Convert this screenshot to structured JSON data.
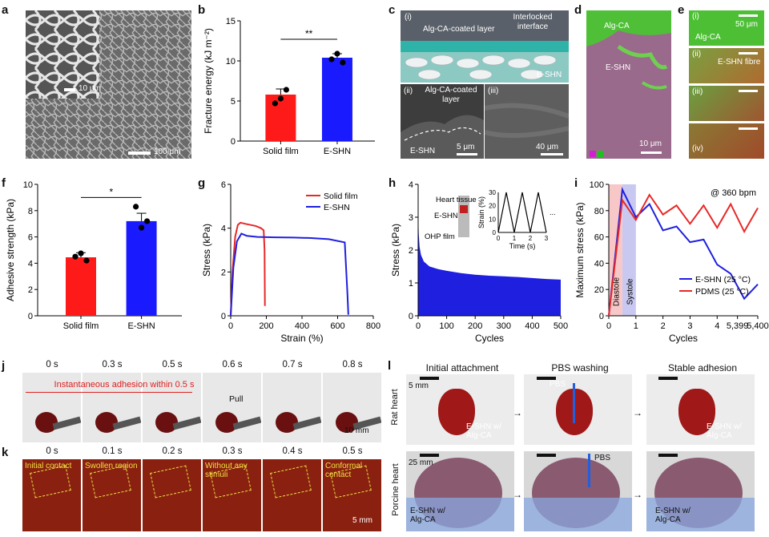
{
  "panels": {
    "a": {
      "letter": "a",
      "scale1": "10 μm",
      "scale2": "100 μm"
    },
    "b": {
      "letter": "b",
      "sig": "**"
    },
    "c": {
      "letter": "c",
      "sub1": "(i)",
      "sub2": "(ii)",
      "sub3": "(iii)",
      "label_coated": "Alg-CA-coated layer",
      "label_interlocked": "Interlocked interface",
      "label_eshn": "E-SHN",
      "label_coated2": "Alg-CA-coated layer",
      "label_eshn2": "E-SHN",
      "scale1": "5 μm",
      "scale2": "40 μm"
    },
    "d": {
      "letter": "d",
      "label_alg": "Alg-CA",
      "label_eshn": "E-SHN",
      "scale": "10 μm"
    },
    "e": {
      "letter": "e",
      "sub1": "(i)",
      "sub2": "(ii)",
      "sub3": "(iii)",
      "sub4": "(iv)",
      "label_alg": "Alg-CA",
      "label_fibre": "E-SHN fibre",
      "scale": "50 μm"
    },
    "f": {
      "letter": "f",
      "sig": "*"
    },
    "g": {
      "letter": "g"
    },
    "h": {
      "letter": "h",
      "inset_heart": "Heart tissue",
      "inset_eshn": "E-SHN",
      "inset_ohp": "OHP film",
      "inset_xlabel": "Time (s)",
      "inset_ylabel": "Strain (%)",
      "inset_dots": "..."
    },
    "i": {
      "letter": "i",
      "rate": "@ 360 bpm",
      "diastole": "Diastole",
      "systole": "Systole"
    },
    "j": {
      "letter": "j",
      "times": [
        "0 s",
        "0.3 s",
        "0.5 s",
        "0.6 s",
        "0.7 s",
        "0.8 s"
      ],
      "banner": "Instantaneous adhesion within 0.5 s",
      "pull": "Pull",
      "scale": "10 mm"
    },
    "k": {
      "letter": "k",
      "times": [
        "0 s",
        "0.1 s",
        "0.2 s",
        "0.3 s",
        "0.4 s",
        "0.5 s"
      ],
      "notes": [
        "Initial contact",
        "Swollen region",
        "",
        "Without any stimuli",
        "",
        "Conformal contact"
      ],
      "scale": "5 mm"
    },
    "l": {
      "letter": "l",
      "headers": [
        "Initial attachment",
        "PBS washing",
        "Stable adhesion"
      ],
      "row1": "Rat heart",
      "row2": "Porcine heart",
      "scale_rat": "5 mm",
      "scale_pig": "25 mm",
      "pbs": "PBS",
      "eshn_label": "E-SHN w/ Alg-CA"
    }
  },
  "colors": {
    "red": "#ff1a1a",
    "blue": "#1a1aff",
    "red_line": "#e82828",
    "blue_line": "#1f1fe0"
  },
  "chart_data": [
    {
      "id": "b",
      "type": "bar",
      "categories": [
        "Solid film",
        "E-SHN"
      ],
      "values": [
        5.8,
        10.4
      ],
      "errors": [
        0.7,
        0.5
      ],
      "points": [
        [
          4.7,
          5.3,
          6.4
        ],
        [
          10.2,
          10.9,
          9.8
        ]
      ],
      "ylabel": "Fracture energy (kJ m⁻²)",
      "ylim": [
        0,
        15
      ],
      "yticks": [
        0,
        5,
        10,
        15
      ]
    },
    {
      "id": "f",
      "type": "bar",
      "categories": [
        "Solid film",
        "E-SHN"
      ],
      "values": [
        4.45,
        7.2
      ],
      "errors": [
        0.35,
        0.6
      ],
      "points": [
        [
          4.5,
          4.75,
          4.2
        ],
        [
          8.3,
          6.7,
          7.2
        ]
      ],
      "ylabel": "Adhesive strength (kPa)",
      "ylim": [
        0,
        10
      ],
      "yticks": [
        0,
        2,
        4,
        6,
        8,
        10
      ]
    },
    {
      "id": "g",
      "type": "line",
      "xlabel": "Strain (%)",
      "ylabel": "Stress (kPa)",
      "xlim": [
        0,
        800
      ],
      "ylim": [
        0,
        6
      ],
      "xticks": [
        0,
        200,
        400,
        600,
        800
      ],
      "yticks": [
        0,
        2,
        4,
        6
      ],
      "series": [
        {
          "name": "Solid film",
          "color": "#e82828",
          "x": [
            0,
            10,
            25,
            40,
            55,
            80,
            110,
            140,
            170,
            185,
            190,
            192
          ],
          "y": [
            0,
            2.0,
            3.6,
            4.15,
            4.25,
            4.2,
            4.15,
            4.1,
            4.0,
            3.9,
            3.0,
            0.45
          ]
        },
        {
          "name": "E-SHN",
          "color": "#1f1fe0",
          "x": [
            0,
            15,
            35,
            60,
            90,
            150,
            250,
            350,
            450,
            550,
            640,
            655,
            660
          ],
          "y": [
            0,
            2.2,
            3.4,
            3.75,
            3.65,
            3.6,
            3.58,
            3.57,
            3.55,
            3.5,
            3.35,
            1.0,
            0.05
          ]
        }
      ]
    },
    {
      "id": "h",
      "type": "area",
      "xlabel": "Cycles",
      "ylabel": "Stress (kPa)",
      "xlim": [
        0,
        500
      ],
      "ylim": [
        0,
        4
      ],
      "xticks": [
        0,
        100,
        200,
        300,
        400,
        500
      ],
      "yticks": [
        0,
        1,
        2,
        3,
        4
      ],
      "upper": {
        "x": [
          0,
          2,
          5,
          10,
          20,
          40,
          70,
          100,
          150,
          200,
          250,
          300,
          350,
          400,
          450,
          500
        ],
        "y": [
          3.2,
          2.5,
          2.1,
          1.85,
          1.65,
          1.5,
          1.42,
          1.37,
          1.3,
          1.25,
          1.22,
          1.2,
          1.18,
          1.15,
          1.12,
          1.1
        ]
      },
      "inset": {
        "time": [
          0,
          0.5,
          1,
          1.5,
          2,
          2.5,
          3
        ],
        "strain": [
          0,
          30,
          0,
          30,
          0,
          30,
          0
        ],
        "xticks": [
          0,
          1,
          2,
          3
        ],
        "yticks": [
          0,
          10,
          20,
          30
        ]
      }
    },
    {
      "id": "i",
      "type": "line",
      "xlabel": "Cycles",
      "ylabel": "Maximum stress (kPa)",
      "ylim": [
        0,
        100
      ],
      "yticks": [
        0,
        20,
        40,
        60,
        80,
        100
      ],
      "xticks": [
        "0",
        "1",
        "2",
        "3",
        "4",
        "5,399",
        "5,400"
      ],
      "series": [
        {
          "name": "E-SHN (25 °C)",
          "color": "#1f1fe0",
          "x": [
            0,
            0.5,
            1,
            1.5,
            2,
            2.5,
            3,
            3.5,
            4,
            4.5,
            5,
            5.5
          ],
          "y": [
            0,
            96,
            75,
            85,
            65,
            68,
            56,
            58,
            39,
            32,
            13,
            24
          ]
        },
        {
          "name": "PDMS (25 °C)",
          "color": "#e82828",
          "x": [
            0,
            0.5,
            1,
            1.5,
            2,
            2.5,
            3,
            3.5,
            4,
            4.5,
            5,
            5.5
          ],
          "y": [
            0,
            88,
            73,
            92,
            77,
            84,
            70,
            84,
            67,
            85,
            64,
            82
          ]
        }
      ]
    }
  ]
}
